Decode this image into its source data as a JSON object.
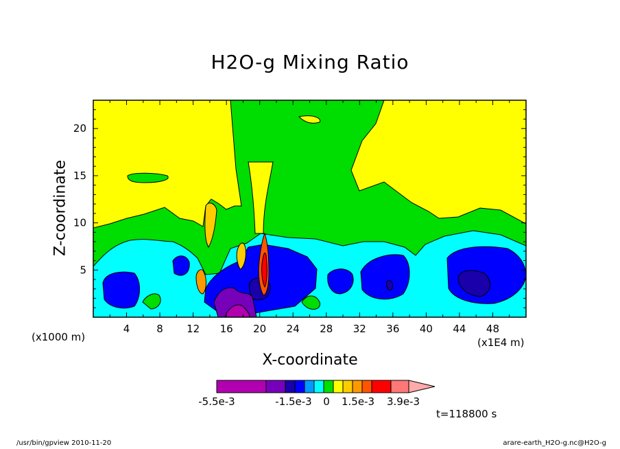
{
  "chart_data": {
    "type": "heatmap",
    "title": "H2O-g Mixing Ratio",
    "xlabel": "X-coordinate",
    "ylabel": "Z-coordinate",
    "x_unit_left": "(x1000 m)",
    "x_unit_right": "(x1E4 m)",
    "xlim": [
      0,
      52
    ],
    "ylim": [
      0,
      23
    ],
    "xticks": [
      "4",
      "8",
      "12",
      "16",
      "20",
      "24",
      "28",
      "32",
      "36",
      "40",
      "44",
      "48"
    ],
    "yticks": [
      "5",
      "10",
      "15",
      "20"
    ],
    "colorbar": {
      "colors": [
        "#b000b0",
        "#7700bb",
        "#1a00aa",
        "#0000ff",
        "#0099ff",
        "#00ffff",
        "#00dd00",
        "#ffff00",
        "#ffcc00",
        "#ff9900",
        "#ff5500",
        "#ff0000",
        "#ff7777",
        "#ffaaaa"
      ],
      "labels": [
        "-5.5e-3",
        "-1.5e-3",
        "0",
        "1.5e-3",
        "3.9e-3"
      ]
    },
    "regions": [
      {
        "level": "green",
        "color": "#00dd00",
        "description": "band z below ~10 km plus plume above x=16-34"
      },
      {
        "level": "cyan",
        "color": "#00ffff",
        "z_range": [
          0,
          5
        ]
      },
      {
        "level": "blue",
        "color": "#0000ff",
        "centers_x": [
          3,
          11,
          19,
          29,
          35,
          45
        ]
      },
      {
        "level": "dark-blue",
        "color": "#1a00aa",
        "centers_x": [
          45,
          35
        ]
      },
      {
        "level": "purple",
        "color": "#7700bb",
        "centers_x": [
          15,
          17
        ]
      },
      {
        "level": "magenta",
        "color": "#b000b0",
        "centers_x": [
          17
        ]
      },
      {
        "level": "orange-red",
        "color": "#ff5500",
        "centers_x": [
          12.7,
          17.6,
          20.4
        ]
      }
    ]
  },
  "time_label": "t=118800 s",
  "footer_left": "/usr/bin/gpview  2010-11-20",
  "footer_right": "arare-earth_H2O-g.nc@H2O-g"
}
